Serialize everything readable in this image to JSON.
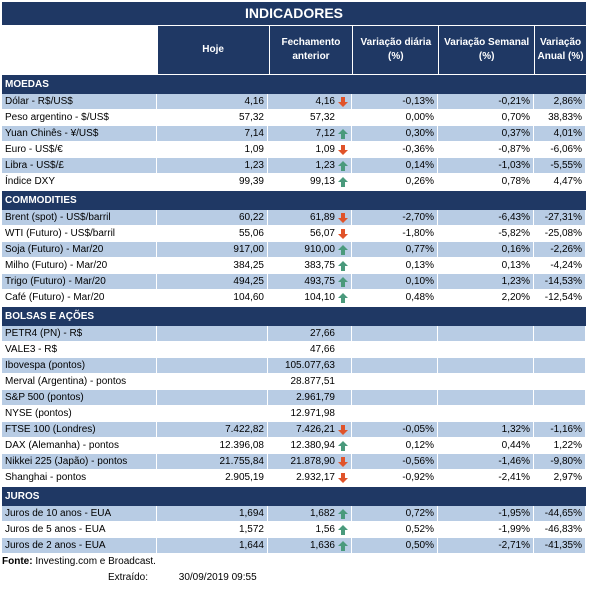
{
  "title": "INDICADORES",
  "columns": [
    "Hoje",
    "Fechamento anterior",
    "Variação diária (%)",
    "Variação Semanal (%)",
    "Variação Anual (%)"
  ],
  "colors": {
    "header_bg": "#1f3864",
    "row_alt": "#b8cce4",
    "up": "#4a9a7c",
    "down": "#e0532a"
  },
  "sections": [
    {
      "name": "MOEDAS",
      "rows": [
        {
          "label": "Dólar - R$/US$",
          "hoje": "4,16",
          "fech": "4,16",
          "arrow": "down",
          "diaria": "-0,13%",
          "semanal": "-0,21%",
          "anual": "2,86%"
        },
        {
          "label": "Peso argentino - $/US$",
          "hoje": "57,32",
          "fech": "57,32",
          "arrow": "",
          "diaria": "0,00%",
          "semanal": "0,70%",
          "anual": "38,83%"
        },
        {
          "label": "Yuan Chinês - ¥/US$",
          "hoje": "7,14",
          "fech": "7,12",
          "arrow": "up",
          "diaria": "0,30%",
          "semanal": "0,37%",
          "anual": "4,01%"
        },
        {
          "label": "Euro - US$/€",
          "hoje": "1,09",
          "fech": "1,09",
          "arrow": "down",
          "diaria": "-0,36%",
          "semanal": "-0,87%",
          "anual": "-6,06%"
        },
        {
          "label": "Libra - US$/£",
          "hoje": "1,23",
          "fech": "1,23",
          "arrow": "up",
          "diaria": "0,14%",
          "semanal": "-1,03%",
          "anual": "-5,55%"
        },
        {
          "label": "Índice DXY",
          "hoje": "99,39",
          "fech": "99,13",
          "arrow": "up",
          "diaria": "0,26%",
          "semanal": "0,78%",
          "anual": "4,47%"
        }
      ]
    },
    {
      "name": "COMMODITIES",
      "rows": [
        {
          "label": "Brent (spot) - US$/barril",
          "hoje": "60,22",
          "fech": "61,89",
          "arrow": "down",
          "diaria": "-2,70%",
          "semanal": "-6,43%",
          "anual": "-27,31%"
        },
        {
          "label": "WTI (Futuro) - US$/barril",
          "hoje": "55,06",
          "fech": "56,07",
          "arrow": "down",
          "diaria": "-1,80%",
          "semanal": "-5,82%",
          "anual": "-25,08%"
        },
        {
          "label": "Soja (Futuro) - Mar/20",
          "hoje": "917,00",
          "fech": "910,00",
          "arrow": "up",
          "diaria": "0,77%",
          "semanal": "0,16%",
          "anual": "-2,26%"
        },
        {
          "label": "Milho (Futuro) - Mar/20",
          "hoje": "384,25",
          "fech": "383,75",
          "arrow": "up",
          "diaria": "0,13%",
          "semanal": "0,13%",
          "anual": "-4,24%"
        },
        {
          "label": "Trigo (Futuro) - Mar/20",
          "hoje": "494,25",
          "fech": "493,75",
          "arrow": "up",
          "diaria": "0,10%",
          "semanal": "1,23%",
          "anual": "-14,53%"
        },
        {
          "label": "Café (Futuro) - Mar/20",
          "hoje": "104,60",
          "fech": "104,10",
          "arrow": "up",
          "diaria": "0,48%",
          "semanal": "2,20%",
          "anual": "-12,54%"
        }
      ]
    },
    {
      "name": "BOLSAS E AÇÕES",
      "rows": [
        {
          "label": "PETR4 (PN) - R$",
          "hoje": "",
          "fech": "27,66",
          "arrow": "",
          "diaria": "",
          "semanal": "",
          "anual": ""
        },
        {
          "label": "VALE3 - R$",
          "hoje": "",
          "fech": "47,66",
          "arrow": "",
          "diaria": "",
          "semanal": "",
          "anual": ""
        },
        {
          "label": "Ibovespa (pontos)",
          "hoje": "",
          "fech": "105.077,63",
          "arrow": "",
          "diaria": "",
          "semanal": "",
          "anual": ""
        },
        {
          "label": "Merval (Argentina) - pontos",
          "hoje": "",
          "fech": "28.877,51",
          "arrow": "",
          "diaria": "",
          "semanal": "",
          "anual": ""
        },
        {
          "label": "S&P 500 (pontos)",
          "hoje": "",
          "fech": "2.961,79",
          "arrow": "",
          "diaria": "",
          "semanal": "",
          "anual": ""
        },
        {
          "label": "NYSE (pontos)",
          "hoje": "",
          "fech": "12.971,98",
          "arrow": "",
          "diaria": "",
          "semanal": "",
          "anual": ""
        },
        {
          "label": "FTSE 100 (Londres)",
          "hoje": "7.422,82",
          "fech": "7.426,21",
          "arrow": "down",
          "diaria": "-0,05%",
          "semanal": "1,32%",
          "anual": "-1,16%"
        },
        {
          "label": "DAX (Alemanha) - pontos",
          "hoje": "12.396,08",
          "fech": "12.380,94",
          "arrow": "up",
          "diaria": "0,12%",
          "semanal": "0,44%",
          "anual": "1,22%"
        },
        {
          "label": "Nikkei 225 (Japão) - pontos",
          "hoje": "21.755,84",
          "fech": "21.878,90",
          "arrow": "down",
          "diaria": "-0,56%",
          "semanal": "-1,46%",
          "anual": "-9,80%"
        },
        {
          "label": "Shanghai - pontos",
          "hoje": "2.905,19",
          "fech": "2.932,17",
          "arrow": "down",
          "diaria": "-0,92%",
          "semanal": "-2,41%",
          "anual": "2,97%"
        }
      ]
    },
    {
      "name": "JUROS",
      "rows": [
        {
          "label": "Juros de 10 anos - EUA",
          "hoje": "1,694",
          "fech": "1,682",
          "arrow": "up",
          "diaria": "0,72%",
          "semanal": "-1,95%",
          "anual": "-44,65%"
        },
        {
          "label": "Juros de 5 anos - EUA",
          "hoje": "1,572",
          "fech": "1,56",
          "arrow": "up",
          "diaria": "0,52%",
          "semanal": "-1,99%",
          "anual": "-46,83%"
        },
        {
          "label": "Juros de 2 anos - EUA",
          "hoje": "1,644",
          "fech": "1,636",
          "arrow": "up",
          "diaria": "0,50%",
          "semanal": "-2,71%",
          "anual": "-41,35%"
        }
      ]
    }
  ],
  "footer": {
    "fonte_label": "Fonte:",
    "fonte_text": "Investing.com e Broadcast.",
    "extraido_label": "Extraído:",
    "extraido_date": "30/09/2019 09:55"
  }
}
